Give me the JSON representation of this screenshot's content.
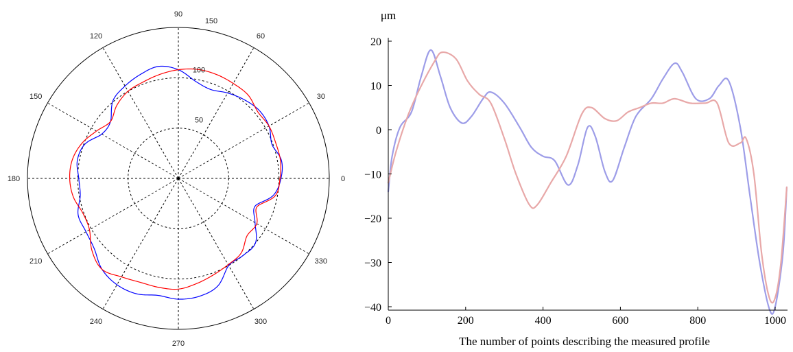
{
  "chart_data": [
    {
      "type": "line",
      "coordinate_system": "polar",
      "angle_ticks": [
        "0",
        "30",
        "60",
        "90",
        "120",
        "150",
        "180",
        "210",
        "240",
        "270",
        "300",
        "330"
      ],
      "extra_tick": "150",
      "radial_ticks": [
        50,
        100
      ],
      "rlim": [
        0,
        150
      ],
      "grid": true,
      "series": [
        {
          "color": "#0000ff",
          "points": [
            [
              0,
              102
            ],
            [
              10,
              104
            ],
            [
              20,
              99
            ],
            [
              30,
              104
            ],
            [
              40,
              105
            ],
            [
              50,
              102
            ],
            [
              60,
              98
            ],
            [
              70,
              94
            ],
            [
              80,
              98
            ],
            [
              90,
              108
            ],
            [
              100,
              113
            ],
            [
              110,
              110
            ],
            [
              120,
              106
            ],
            [
              130,
              101
            ],
            [
              140,
              88
            ],
            [
              150,
              88
            ],
            [
              160,
              99
            ],
            [
              170,
              102
            ],
            [
              180,
              99
            ],
            [
              190,
              99
            ],
            [
              200,
              106
            ],
            [
              210,
              106
            ],
            [
              220,
              109
            ],
            [
              230,
              118
            ],
            [
              240,
              122
            ],
            [
              250,
              122
            ],
            [
              260,
              118
            ],
            [
              270,
              120
            ],
            [
              280,
              119
            ],
            [
              290,
              114
            ],
            [
              300,
              100
            ],
            [
              310,
              100
            ],
            [
              320,
              100
            ],
            [
              330,
              88
            ],
            [
              340,
              81
            ],
            [
              350,
              96
            ],
            [
              360,
              102
            ]
          ]
        },
        {
          "color": "#ff0000",
          "points": [
            [
              0,
              101
            ],
            [
              10,
              103
            ],
            [
              20,
              103
            ],
            [
              30,
              104
            ],
            [
              40,
              103
            ],
            [
              50,
              108
            ],
            [
              60,
              109
            ],
            [
              70,
              110
            ],
            [
              80,
              110
            ],
            [
              90,
              108
            ],
            [
              100,
              105
            ],
            [
              110,
              102
            ],
            [
              120,
              100
            ],
            [
              130,
              95
            ],
            [
              140,
              88
            ],
            [
              150,
              94
            ],
            [
              160,
              102
            ],
            [
              170,
              107
            ],
            [
              180,
              108
            ],
            [
              190,
              106
            ],
            [
              200,
              101
            ],
            [
              210,
              102
            ],
            [
              220,
              112
            ],
            [
              230,
              118
            ],
            [
              240,
              113
            ],
            [
              250,
              110
            ],
            [
              260,
              110
            ],
            [
              270,
              110
            ],
            [
              280,
              106
            ],
            [
              290,
              102
            ],
            [
              300,
              99
            ],
            [
              310,
              97
            ],
            [
              320,
              89
            ],
            [
              330,
              90
            ],
            [
              340,
              83
            ],
            [
              350,
              98
            ],
            [
              360,
              101
            ]
          ]
        }
      ]
    },
    {
      "type": "line",
      "ylabel": "μm",
      "xlabel": "The number of points describing the measured profile",
      "xlim": [
        0,
        1050
      ],
      "ylim": [
        -41,
        20
      ],
      "x_ticks": [
        "0",
        "200",
        "400",
        "600",
        "800",
        "1000"
      ],
      "y_ticks": [
        "20",
        "10",
        "0",
        "−10",
        "−20",
        "−30",
        "−40"
      ],
      "series": [
        {
          "color": "#9d9de8",
          "points": [
            [
              0,
              -14
            ],
            [
              10,
              -6
            ],
            [
              30,
              0.5
            ],
            [
              60,
              4
            ],
            [
              85,
              12
            ],
            [
              110,
              18
            ],
            [
              135,
              12
            ],
            [
              160,
              5
            ],
            [
              190,
              1.5
            ],
            [
              215,
              3
            ],
            [
              245,
              7
            ],
            [
              265,
              8.5
            ],
            [
              300,
              6
            ],
            [
              340,
              0.5
            ],
            [
              370,
              -4
            ],
            [
              400,
              -6
            ],
            [
              430,
              -7
            ],
            [
              465,
              -12.5
            ],
            [
              490,
              -8
            ],
            [
              515,
              0.5
            ],
            [
              535,
              -1.5
            ],
            [
              560,
              -9.5
            ],
            [
              580,
              -11.5
            ],
            [
              610,
              -4
            ],
            [
              640,
              3
            ],
            [
              680,
              7
            ],
            [
              710,
              11.5
            ],
            [
              740,
              15
            ],
            [
              760,
              13
            ],
            [
              795,
              7
            ],
            [
              830,
              7
            ],
            [
              855,
              10
            ],
            [
              880,
              11
            ],
            [
              910,
              0.5
            ],
            [
              935,
              -15
            ],
            [
              960,
              -30
            ],
            [
              985,
              -40.5
            ],
            [
              1000,
              -40
            ],
            [
              1020,
              -28
            ],
            [
              1030,
              -13
            ]
          ]
        },
        {
          "color": "#e8a8a8",
          "points": [
            [
              0,
              -12
            ],
            [
              20,
              -5
            ],
            [
              50,
              3
            ],
            [
              80,
              9
            ],
            [
              120,
              15.5
            ],
            [
              140,
              17.5
            ],
            [
              175,
              16
            ],
            [
              205,
              11
            ],
            [
              235,
              8
            ],
            [
              265,
              6
            ],
            [
              300,
              -2
            ],
            [
              330,
              -10
            ],
            [
              365,
              -17
            ],
            [
              385,
              -17
            ],
            [
              420,
              -12
            ],
            [
              460,
              -6
            ],
            [
              500,
              3.5
            ],
            [
              525,
              5
            ],
            [
              560,
              2.5
            ],
            [
              590,
              2
            ],
            [
              620,
              4
            ],
            [
              650,
              5
            ],
            [
              680,
              6
            ],
            [
              710,
              6
            ],
            [
              740,
              7
            ],
            [
              780,
              6
            ],
            [
              820,
              6
            ],
            [
              850,
              6
            ],
            [
              880,
              -3
            ],
            [
              910,
              -3
            ],
            [
              925,
              -2
            ],
            [
              945,
              -10
            ],
            [
              965,
              -28
            ],
            [
              985,
              -38
            ],
            [
              1000,
              -38
            ],
            [
              1015,
              -30
            ],
            [
              1030,
              -13
            ]
          ]
        }
      ]
    }
  ]
}
